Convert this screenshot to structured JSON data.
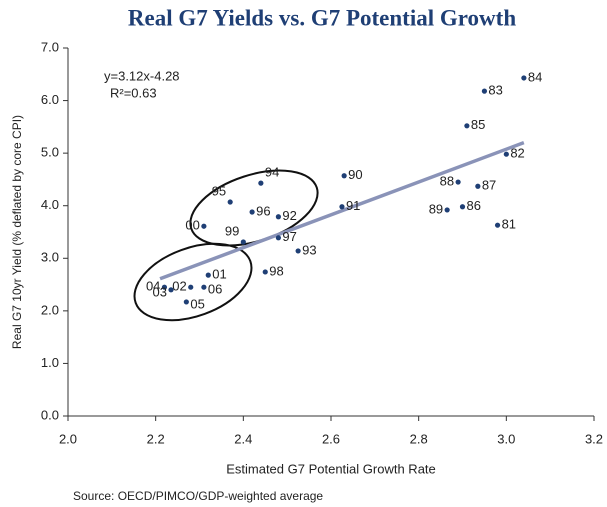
{
  "chart_data": {
    "type": "scatter",
    "title": "Real G7 Yields vs. G7 Potential Growth",
    "x_label": "Estimated G7 Potential Growth Rate",
    "y_label": "Real G7 10yr Yield (% deflated by core CPI)",
    "source": "Source: OECD/PIMCO/GDP-weighted average",
    "annotation": "y=3.12x-4.28",
    "annotation2": "R²=0.63",
    "color": "#1f3f75",
    "labels": [
      "84",
      "83",
      "85",
      "82",
      "90",
      "91",
      "88",
      "87",
      "86",
      "89",
      "81",
      "94",
      "95",
      "96",
      "92",
      "00",
      "99",
      "97",
      "93",
      "98",
      "01",
      "02",
      "06",
      "04",
      "03",
      "05"
    ],
    "x": [
      3.04,
      2.95,
      2.91,
      3.0,
      2.63,
      2.625,
      2.89,
      2.935,
      2.9,
      2.865,
      2.98,
      2.44,
      2.37,
      2.42,
      2.48,
      2.31,
      2.4,
      2.48,
      2.525,
      2.45,
      2.32,
      2.28,
      2.31,
      2.22,
      2.235,
      2.27
    ],
    "values": [
      6.43,
      6.18,
      5.52,
      4.98,
      4.57,
      3.98,
      4.45,
      4.37,
      3.98,
      3.92,
      3.63,
      4.43,
      4.07,
      3.88,
      3.79,
      3.61,
      3.31,
      3.39,
      3.14,
      2.74,
      2.68,
      2.45,
      2.45,
      2.45,
      2.4,
      2.17
    ],
    "trend_line": {
      "x": [
        2.21,
        3.04
      ],
      "y": [
        2.61,
        5.2
      ],
      "color": "#8a93b8"
    },
    "xlim": [
      2.0,
      3.2
    ],
    "xticks": [
      {
        "value": 2.0,
        "label": "2.0"
      },
      2.2,
      2.4,
      2.6,
      2.8,
      {
        "value": 3.0,
        "label": "3.0"
      },
      3.2
    ],
    "ylim": [
      0.0,
      7.0
    ],
    "yticks": [
      {
        "value": 0.0,
        "label": "0.0"
      },
      {
        "value": 1.0,
        "label": "1.0"
      },
      {
        "value": 2.0,
        "label": "2.0"
      },
      {
        "value": 3.0,
        "label": "3.0"
      },
      {
        "value": 4.0,
        "label": "4.0"
      },
      {
        "value": 5.0,
        "label": "5.0"
      },
      {
        "value": 6.0,
        "label": "6.0"
      },
      {
        "value": 7.0,
        "label": "7.0"
      }
    ]
  }
}
